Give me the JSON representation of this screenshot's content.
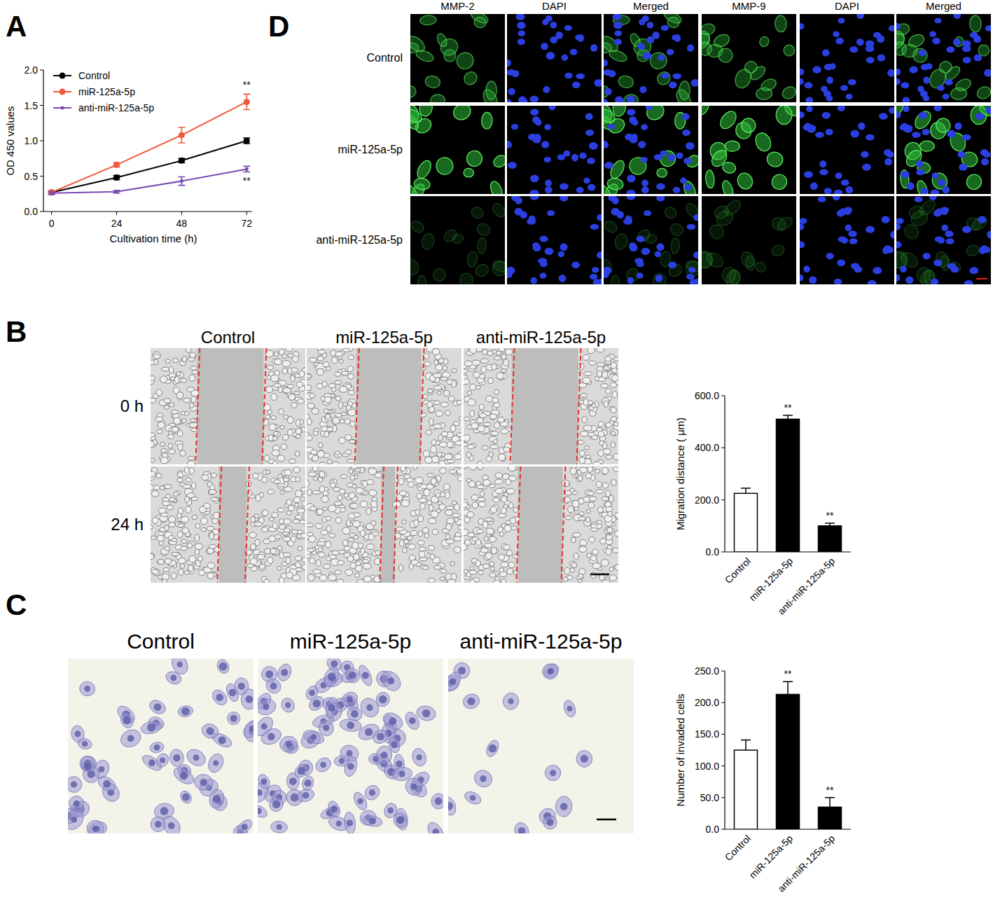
{
  "chart_data": [
    {
      "type": "line",
      "x": [
        0,
        24,
        48,
        72
      ],
      "xlim": [
        -3,
        74
      ],
      "xticks": [
        0,
        24,
        48,
        72
      ],
      "ylim": [
        0,
        2
      ],
      "yticks": [
        {
          "value": 0,
          "label": "0.0"
        },
        0.5,
        {
          "value": 1,
          "label": "1.0"
        },
        1.5,
        {
          "value": 2,
          "label": "2.0"
        }
      ],
      "x_label": "Cultivation time (h)",
      "y_label": "OD 450 values",
      "legend": "upper left",
      "series": [
        {
          "name": "Control",
          "color": "#000000",
          "marker": "circle",
          "values": [
            0.27,
            0.48,
            0.72,
            1.0
          ],
          "errors": [
            0.02,
            0.03,
            0.03,
            0.04
          ]
        },
        {
          "name": "miR-125a-5p",
          "color": "#f05a3c",
          "marker": "circle",
          "values": [
            0.27,
            0.66,
            1.08,
            1.55
          ],
          "errors": [
            0.02,
            0.03,
            0.11,
            0.11
          ],
          "annotation": "**"
        },
        {
          "name": "anti-miR-125a-5p",
          "color": "#7a4ab3",
          "marker": "dot",
          "values": [
            0.26,
            0.28,
            0.43,
            0.6
          ],
          "errors": [
            0.02,
            0.02,
            0.06,
            0.04
          ],
          "annotation": "**"
        }
      ]
    },
    {
      "type": "bar",
      "categories": [
        "Control",
        "miR-125a-5p",
        "anti-miR-125a-5p"
      ],
      "values": [
        225,
        510,
        100
      ],
      "errors": [
        20,
        15,
        10
      ],
      "colors": [
        "#ffffff",
        "#000000",
        "#000000"
      ],
      "ylim": [
        0,
        600
      ],
      "yticks": [
        {
          "value": 0,
          "label": "0.0"
        },
        {
          "value": 200,
          "label": "200.0"
        },
        {
          "value": 400,
          "label": "400.0"
        },
        {
          "value": 600,
          "label": "600.0"
        }
      ],
      "y_label": "Migration distance ( μm)",
      "annotations": [
        null,
        "**",
        "**"
      ]
    },
    {
      "type": "bar",
      "categories": [
        "Control",
        "miR-125a-5p",
        "anti-miR-125a-5p"
      ],
      "values": [
        125,
        213,
        35
      ],
      "errors": [
        16,
        20,
        15
      ],
      "colors": [
        "#ffffff",
        "#000000",
        "#000000"
      ],
      "ylim": [
        0,
        250
      ],
      "yticks": [
        {
          "value": 0,
          "label": "0.0"
        },
        {
          "value": 50,
          "label": "50.0"
        },
        {
          "value": 100,
          "label": "100.0"
        },
        {
          "value": 150,
          "label": "150.0"
        },
        {
          "value": 200,
          "label": "200.0"
        },
        {
          "value": 250,
          "label": "250.0"
        }
      ],
      "y_label": "Number of invaded cells",
      "annotations": [
        null,
        "**",
        "**"
      ]
    }
  ],
  "panels": {
    "letters": [
      "A",
      "B",
      "C",
      "D"
    ]
  },
  "images_B": {
    "columns": [
      "Control",
      "miR-125a-5p",
      "anti-miR-125a-5p"
    ],
    "rows": [
      "0 h",
      "24 h"
    ]
  },
  "images_C": {
    "columns": [
      "Control",
      "miR-125a-5p",
      "anti-miR-125a-5p"
    ]
  },
  "images_D": {
    "columns": [
      "MMP-2",
      "DAPI",
      "Merged",
      "MMP-9",
      "DAPI",
      "Merged"
    ],
    "rows": [
      "Control",
      "miR-125a-5p",
      "anti-miR-125a-5p"
    ]
  }
}
